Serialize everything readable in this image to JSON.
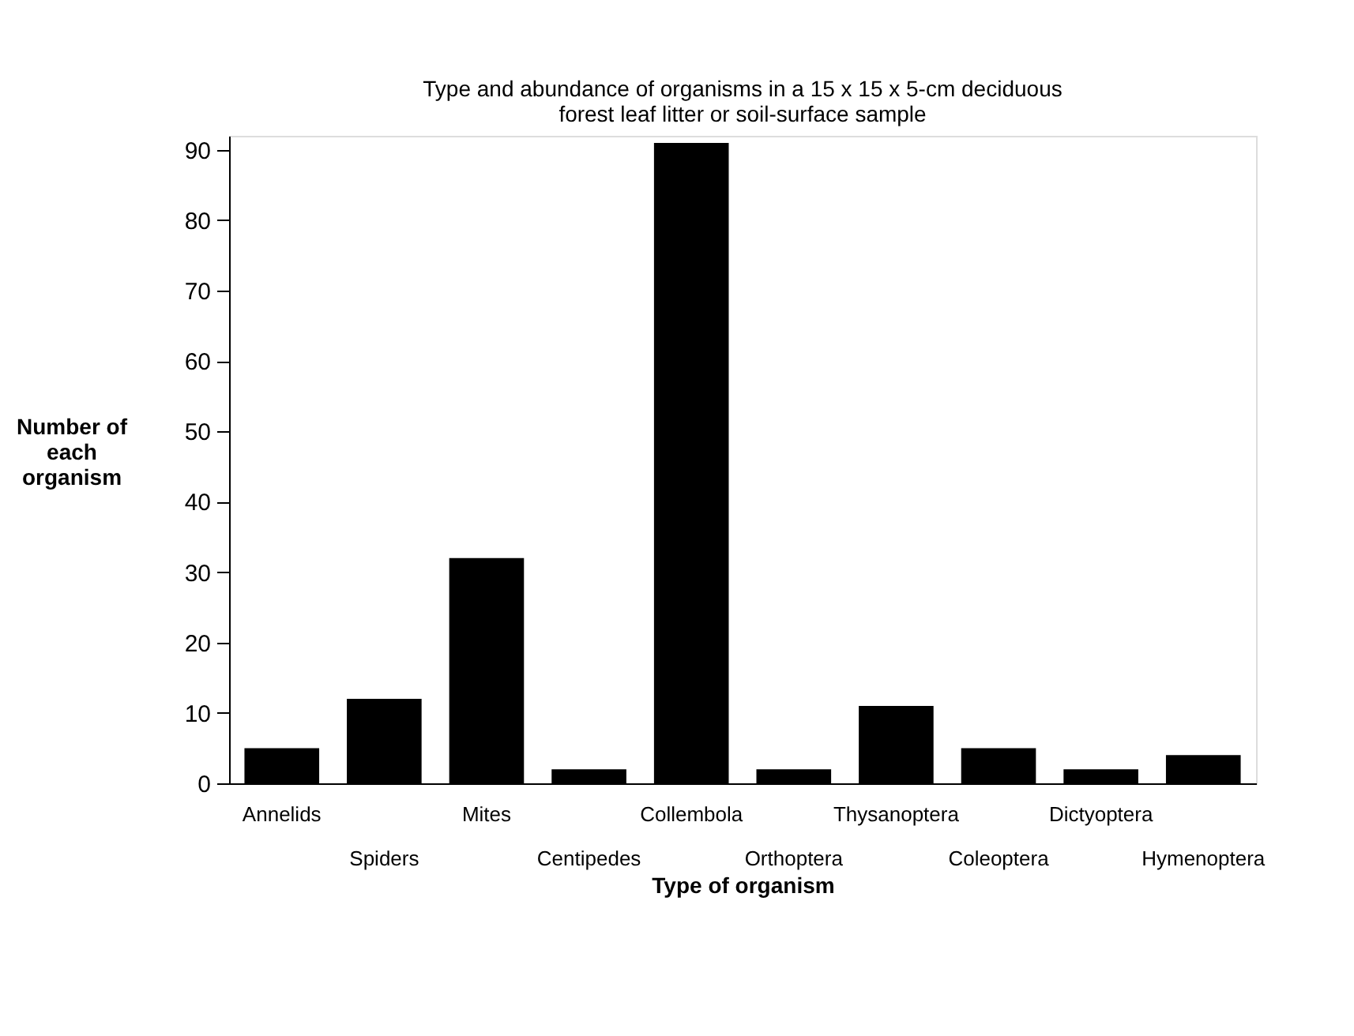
{
  "chart_data": {
    "type": "bar",
    "title": "Type and abundance of organisms in a 15 x 15 x 5-cm deciduous forest leaf litter or soil-surface sample",
    "xlabel": "Type of organism",
    "ylabel": "Number of\neach\norganism",
    "categories": [
      "Annelids",
      "Spiders",
      "Mites",
      "Centipedes",
      "Collembola",
      "Orthoptera",
      "Thysanoptera",
      "Coleoptera",
      "Dictyoptera",
      "Hymenoptera"
    ],
    "values": [
      5,
      12,
      32,
      2,
      91,
      2,
      11,
      5,
      2,
      4
    ],
    "color": "#000000",
    "ylim": [
      0,
      92
    ],
    "yticks": [
      0,
      10,
      20,
      30,
      40,
      50,
      60,
      70,
      80,
      90
    ],
    "grid": false
  }
}
